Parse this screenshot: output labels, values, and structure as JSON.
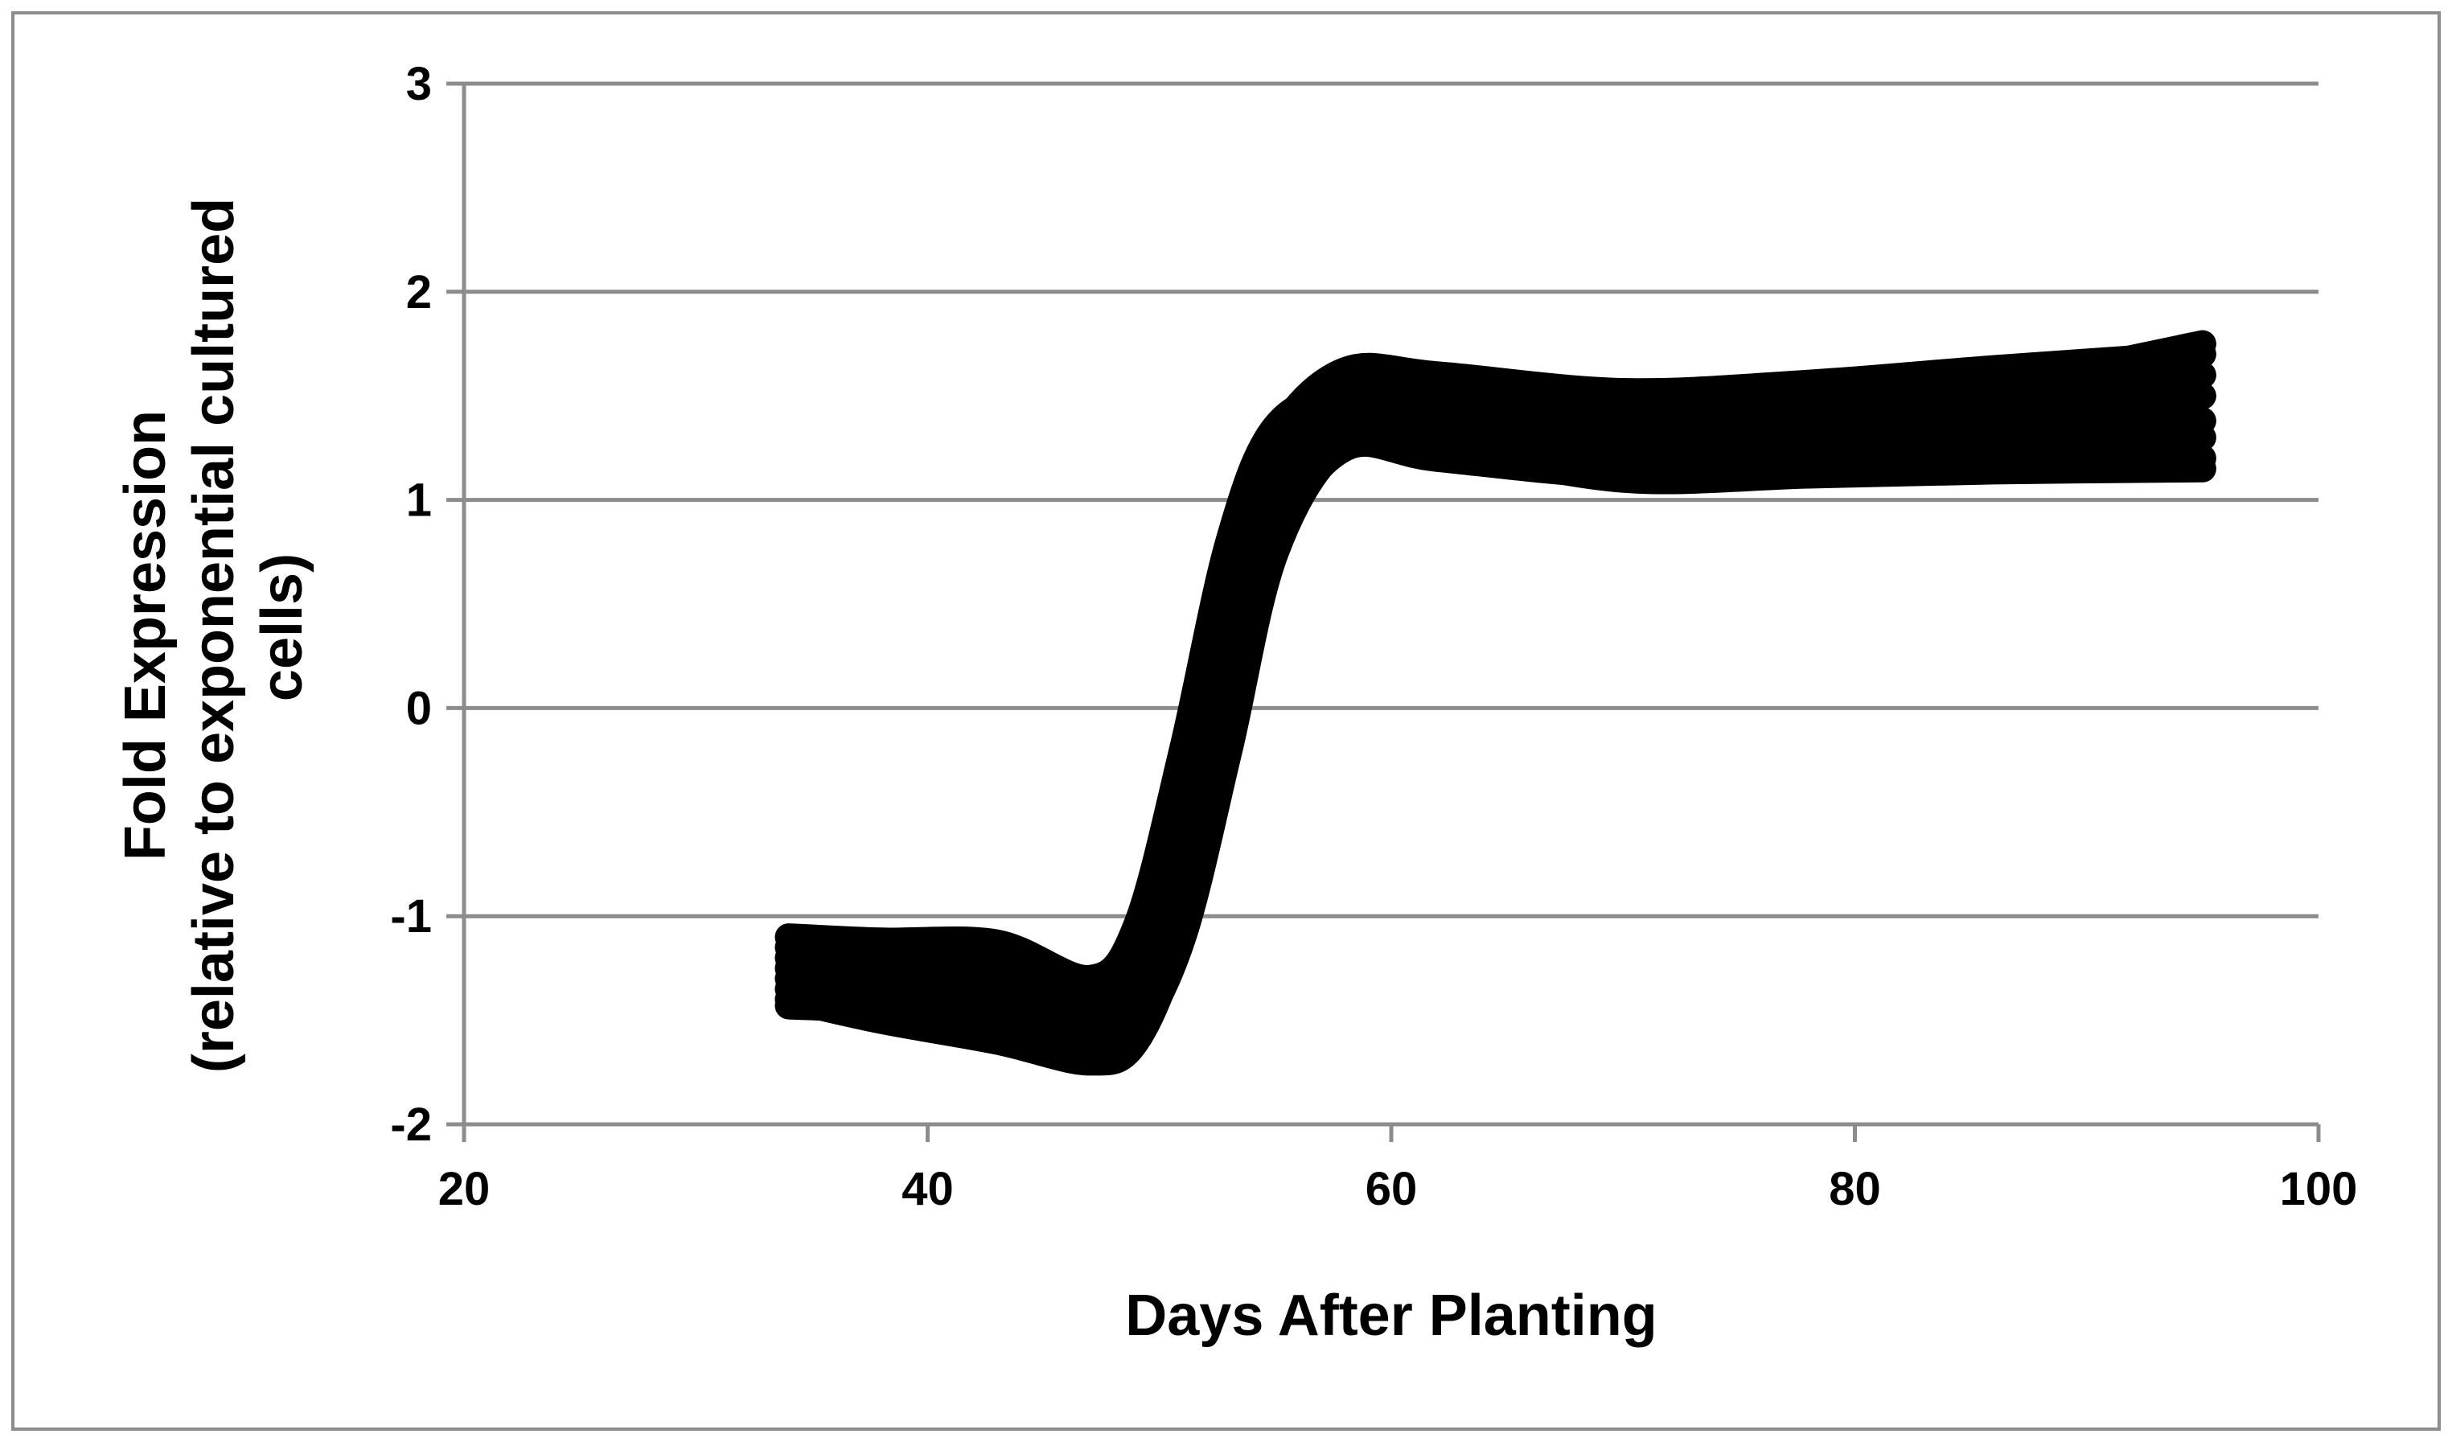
{
  "chart_data": {
    "type": "line",
    "title": "",
    "xlabel": "Days After Planting",
    "ylabel_lines": [
      "Fold Expression",
      "(relative to exponential cultured",
      "cells)"
    ],
    "xlim": [
      20,
      100
    ],
    "ylim": [
      -2,
      3
    ],
    "x_ticks": [
      20,
      40,
      60,
      80,
      100
    ],
    "y_ticks": [
      -2,
      -1,
      0,
      1,
      2,
      3
    ],
    "grid": {
      "horizontal": true,
      "vertical": false
    },
    "legend": "none",
    "line_color": "#000000",
    "grid_color": "#8c8c8c",
    "series": [
      {
        "x": [
          34,
          38,
          43,
          47,
          49,
          51,
          53,
          55,
          58,
          62,
          70,
          78,
          86,
          95
        ],
        "y": [
          -1.1,
          -1.12,
          -1.13,
          -1.3,
          -1.05,
          -0.2,
          0.8,
          1.35,
          1.5,
          1.42,
          1.3,
          1.45,
          1.55,
          1.75
        ]
      },
      {
        "x": [
          34,
          38,
          43,
          47,
          49,
          51,
          53,
          55,
          58,
          62,
          70,
          78,
          86,
          95
        ],
        "y": [
          -1.15,
          -1.17,
          -1.2,
          -1.35,
          -1.1,
          -0.3,
          0.7,
          1.3,
          1.62,
          1.6,
          1.52,
          1.56,
          1.63,
          1.7
        ]
      },
      {
        "x": [
          34,
          38,
          43,
          47,
          49,
          51,
          53,
          55,
          58,
          62,
          70,
          78,
          86,
          95
        ],
        "y": [
          -1.2,
          -1.23,
          -1.27,
          -1.4,
          -1.2,
          -0.45,
          0.55,
          1.2,
          1.52,
          1.5,
          1.42,
          1.46,
          1.52,
          1.6
        ]
      },
      {
        "x": [
          34,
          38,
          43,
          47,
          49,
          51,
          53,
          55,
          58,
          62,
          70,
          78,
          86,
          95
        ],
        "y": [
          -1.25,
          -1.3,
          -1.35,
          -1.5,
          -1.3,
          -0.6,
          0.4,
          1.1,
          1.45,
          1.42,
          1.35,
          1.38,
          1.42,
          1.5
        ]
      },
      {
        "x": [
          34,
          38,
          43,
          47,
          49,
          51,
          53,
          55,
          58,
          62,
          70,
          78,
          86,
          95
        ],
        "y": [
          -1.3,
          -1.38,
          -1.45,
          -1.58,
          -1.4,
          -0.75,
          0.25,
          1.0,
          1.38,
          1.35,
          1.28,
          1.3,
          1.33,
          1.38
        ]
      },
      {
        "x": [
          34,
          38,
          43,
          47,
          49,
          51,
          53,
          55,
          58,
          62,
          70,
          78,
          86,
          95
        ],
        "y": [
          -1.35,
          -1.45,
          -1.55,
          -1.65,
          -1.5,
          -0.9,
          0.1,
          0.9,
          1.3,
          1.28,
          1.2,
          1.22,
          1.25,
          1.3
        ]
      },
      {
        "x": [
          34,
          38,
          43,
          47,
          49,
          51,
          53,
          55,
          58,
          62,
          70,
          78,
          86,
          95
        ],
        "y": [
          -1.4,
          -1.5,
          -1.6,
          -1.7,
          -1.6,
          -1.05,
          -0.1,
          0.8,
          1.25,
          1.2,
          1.12,
          1.15,
          1.18,
          1.2
        ]
      },
      {
        "x": [
          34,
          38,
          43,
          47,
          49,
          51,
          53,
          55,
          58,
          62,
          70,
          78,
          86,
          95
        ],
        "y": [
          -1.43,
          -1.46,
          -1.58,
          -1.62,
          -1.55,
          -1.1,
          -0.2,
          0.75,
          1.27,
          1.25,
          1.1,
          1.12,
          1.14,
          1.15
        ]
      }
    ]
  }
}
